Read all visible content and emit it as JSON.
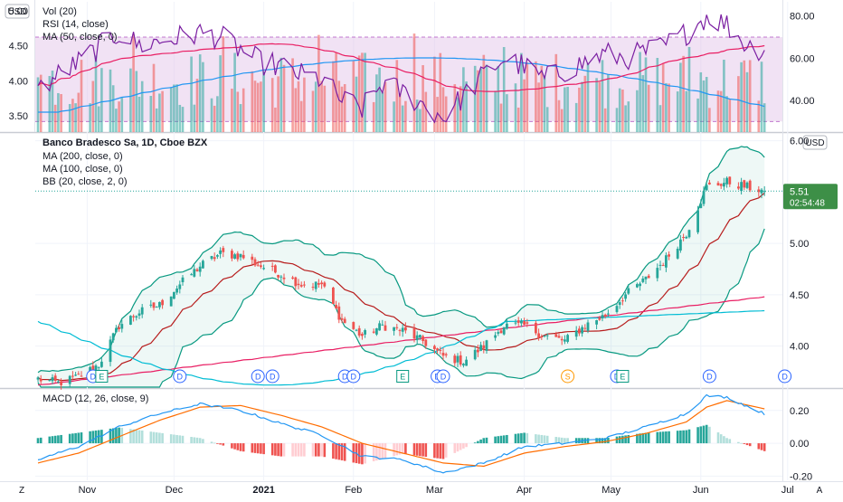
{
  "colors": {
    "up": "#26a69a",
    "down": "#ef5350",
    "rsi_line": "#7b1fa2",
    "rsi_band": "#e1bee7",
    "vol_ma": "#2196f3",
    "rsi_ma": "#e91e63",
    "ma200": "#00bcd4",
    "ma100": "#e91e63",
    "bb_basis": "#b71c1c",
    "bb_band": "#089981",
    "macd_line": "#2196f3",
    "macd_signal": "#ff6d00",
    "price_tag": "#26a69a"
  },
  "top_pane": {
    "currency": "USD",
    "left_ticks": [
      "5.00",
      "4.50",
      "4.00",
      "3.50"
    ],
    "right_ticks": [
      "80.00",
      "60.00",
      "40.00"
    ],
    "legend": [
      "Vol (20)",
      "RSI (14, close)",
      "MA (50, close, 0)"
    ]
  },
  "main_pane": {
    "currency": "USD",
    "legend": [
      "Banco Bradesco Sa, 1D, Cboe BZX",
      "MA (200, close, 0)",
      "MA (100, close, 0)",
      "BB (20, close, 2, 0)"
    ],
    "right_ticks": [
      "6.00",
      "5.00",
      "4.50",
      "4.00"
    ],
    "last_price": "5.51",
    "countdown": "02:54:48",
    "events": [
      "D",
      "E",
      "D",
      "D",
      "D",
      "D",
      "D",
      "E",
      "D",
      "D",
      "S",
      "D",
      "E",
      "D",
      "D"
    ]
  },
  "macd_pane": {
    "legend": "MACD (12, 26, close, 9)",
    "right_ticks": [
      "0.20",
      "0.00",
      "-0.20"
    ]
  },
  "time_axis": {
    "labels": [
      "Nov",
      "Dec",
      "2021",
      "Feb",
      "Mar",
      "Apr",
      "May",
      "Jun",
      "Jul"
    ],
    "left_button": "Z",
    "right_button": "A"
  },
  "chart_data": [
    {
      "type": "candlestick",
      "title": "Banco Bradesco Sa, 1D, Cboe BZX",
      "ylim": [
        3.6,
        6.05
      ],
      "price_anchors": [
        [
          "Oct 15",
          3.68
        ],
        [
          "Oct 22",
          3.64
        ],
        [
          "Oct 29",
          3.7
        ],
        [
          "Nov 5",
          3.82
        ],
        [
          "Nov 12",
          4.2
        ],
        [
          "Nov 19",
          4.33
        ],
        [
          "Nov 26",
          4.4
        ],
        [
          "Dec 3",
          4.6
        ],
        [
          "Dec 10",
          4.78
        ],
        [
          "Dec 17",
          4.9
        ],
        [
          "Dec 24",
          4.88
        ],
        [
          "Dec 31",
          4.78
        ],
        [
          "Jan 7",
          4.7
        ],
        [
          "Jan 14",
          4.6
        ],
        [
          "Jan 21",
          4.6
        ],
        [
          "Jan 28",
          4.25
        ],
        [
          "Feb 4",
          4.1
        ],
        [
          "Feb 11",
          4.2
        ],
        [
          "Feb 18",
          4.15
        ],
        [
          "Feb 25",
          4.05
        ],
        [
          "Mar 4",
          3.9
        ],
        [
          "Mar 11",
          3.85
        ],
        [
          "Mar 18",
          4.0
        ],
        [
          "Mar 25",
          4.2
        ],
        [
          "Apr 1",
          4.2
        ],
        [
          "Apr 8",
          4.1
        ],
        [
          "Apr 15",
          4.05
        ],
        [
          "Apr 22",
          4.2
        ],
        [
          "Apr 29",
          4.3
        ],
        [
          "May 6",
          4.5
        ],
        [
          "May 13",
          4.65
        ],
        [
          "May 20",
          4.85
        ],
        [
          "May 27",
          5.1
        ],
        [
          "Jun 3",
          5.55
        ],
        [
          "Jun 10",
          5.6
        ],
        [
          "Jun 17",
          5.55
        ],
        [
          "Jun 23",
          5.51
        ]
      ],
      "last_close": 5.51
    },
    {
      "type": "line",
      "title": "RSI (14, close)",
      "ylim": [
        25,
        85
      ],
      "band": [
        30,
        70
      ],
      "points": [
        [
          "Oct 15",
          45
        ],
        [
          "Oct 22",
          52
        ],
        [
          "Oct 29",
          58
        ],
        [
          "Nov 5",
          65
        ],
        [
          "Nov 12",
          72
        ],
        [
          "Nov 19",
          66
        ],
        [
          "Nov 26",
          68
        ],
        [
          "Dec 3",
          70
        ],
        [
          "Dec 10",
          72
        ],
        [
          "Dec 17",
          70
        ],
        [
          "Dec 24",
          64
        ],
        [
          "Dec 31",
          58
        ],
        [
          "Jan 7",
          56
        ],
        [
          "Jan 14",
          52
        ],
        [
          "Jan 21",
          50
        ],
        [
          "Jan 28",
          40
        ],
        [
          "Feb 4",
          36
        ],
        [
          "Feb 11",
          48
        ],
        [
          "Feb 18",
          44
        ],
        [
          "Feb 25",
          38
        ],
        [
          "Mar 4",
          32
        ],
        [
          "Mar 11",
          42
        ],
        [
          "Mar 18",
          52
        ],
        [
          "Mar 25",
          60
        ],
        [
          "Apr 1",
          56
        ],
        [
          "Apr 8",
          50
        ],
        [
          "Apr 15",
          54
        ],
        [
          "Apr 22",
          58
        ],
        [
          "Apr 29",
          62
        ],
        [
          "May 6",
          60
        ],
        [
          "May 13",
          63
        ],
        [
          "May 20",
          66
        ],
        [
          "May 27",
          72
        ],
        [
          "Jun 3",
          80
        ],
        [
          "Jun 10",
          76
        ],
        [
          "Jun 17",
          66
        ],
        [
          "Jun 23",
          64
        ]
      ]
    },
    {
      "type": "line",
      "title": "MACD (12, 26, close, 9)",
      "ylim": [
        -0.22,
        0.32
      ],
      "macd": [
        [
          "Oct 15",
          -0.1
        ],
        [
          "Oct 29",
          -0.02
        ],
        [
          "Nov 12",
          0.1
        ],
        [
          "Nov 26",
          0.18
        ],
        [
          "Dec 10",
          0.24
        ],
        [
          "Dec 24",
          0.2
        ],
        [
          "Jan 7",
          0.12
        ],
        [
          "Jan 21",
          0.05
        ],
        [
          "Feb 4",
          -0.08
        ],
        [
          "Feb 18",
          -0.1
        ],
        [
          "Mar 4",
          -0.18
        ],
        [
          "Mar 18",
          -0.12
        ],
        [
          "Apr 1",
          -0.02
        ],
        [
          "Apr 15",
          0.0
        ],
        [
          "Apr 29",
          0.03
        ],
        [
          "May 13",
          0.1
        ],
        [
          "May 27",
          0.18
        ],
        [
          "Jun 3",
          0.29
        ],
        [
          "Jun 10",
          0.28
        ],
        [
          "Jun 23",
          0.18
        ]
      ],
      "signal": [
        [
          "Oct 15",
          -0.12
        ],
        [
          "Oct 29",
          -0.06
        ],
        [
          "Nov 12",
          0.04
        ],
        [
          "Nov 26",
          0.14
        ],
        [
          "Dec 10",
          0.22
        ],
        [
          "Dec 24",
          0.23
        ],
        [
          "Jan 7",
          0.17
        ],
        [
          "Jan 21",
          0.1
        ],
        [
          "Feb 4",
          0.0
        ],
        [
          "Feb 18",
          -0.06
        ],
        [
          "Mar 4",
          -0.12
        ],
        [
          "Mar 18",
          -0.14
        ],
        [
          "Apr 1",
          -0.06
        ],
        [
          "Apr 15",
          -0.02
        ],
        [
          "Apr 29",
          0.01
        ],
        [
          "May 13",
          0.06
        ],
        [
          "May 27",
          0.13
        ],
        [
          "Jun 3",
          0.22
        ],
        [
          "Jun 10",
          0.26
        ],
        [
          "Jun 23",
          0.21
        ]
      ]
    }
  ]
}
